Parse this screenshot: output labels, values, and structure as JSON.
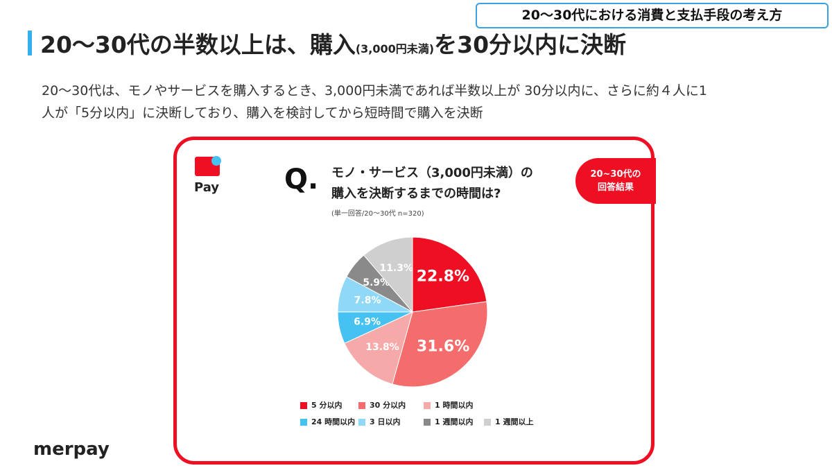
{
  "header": {
    "tag": "20〜30代における消費と支払手段の考え方",
    "title": [
      "20〜30代の半数以上は、購入",
      "(3,000円未満)",
      "を30分以内に決断"
    ]
  },
  "description": [
    "20〜30代は、モノやサービスを購入するとき、3,000円未満であれば半数以上が 30分以内に、さらに約４人に1",
    "人が「5分以内」に決断しており、購入を検討してから短時間で購入を決断"
  ],
  "card": {
    "logo": "Pay",
    "question_mark": "Q.",
    "question": [
      "モノ・サービス（3,000円未満）の",
      "購入を決断するまでの時間は?"
    ],
    "note": "(単一回答/20〜30代 n=320)",
    "badge": [
      "20~30代の",
      "回答結果"
    ]
  },
  "chart_data": {
    "type": "pie",
    "categories": [
      "5 分以内",
      "30 分以内",
      "1 時間以内",
      "24 時間以内",
      "3 日以内",
      "1 週間以内",
      "1 週間以上"
    ],
    "values": [
      22.8,
      31.6,
      13.8,
      6.9,
      7.8,
      5.9,
      11.3
    ],
    "value_labels": [
      "22.8%",
      "31.6%",
      "13.8%",
      "6.9%",
      "7.8%",
      "5.9%",
      "11.3%"
    ],
    "colors": [
      "#ee0f23",
      "#f46c6c",
      "#f6a9a9",
      "#45c2f2",
      "#8fd8f7",
      "#8a8a8a",
      "#cfcfcf"
    ]
  },
  "footer": {
    "brand": "merpay"
  }
}
